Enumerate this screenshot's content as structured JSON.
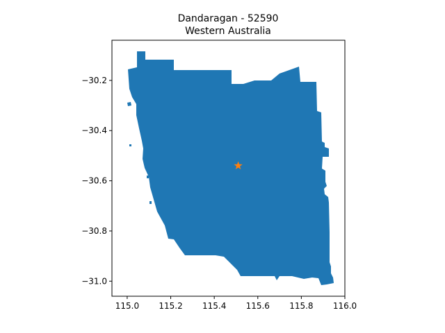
{
  "title": {
    "line1": "Dandaragan - 52590",
    "line2": "Western Australia"
  },
  "colors": {
    "region_fill": "#1f77b4",
    "marker": "#ff7f0e",
    "axes": "#000000"
  },
  "map": {
    "xlim": [
      114.93,
      116.0
    ],
    "ylim": [
      -31.06,
      -30.04
    ],
    "x_ticks": [
      115.0,
      115.2,
      115.4,
      115.6,
      115.8,
      116.0
    ],
    "x_tick_labels": [
      "115.0",
      "115.2",
      "115.4",
      "115.6",
      "115.8",
      "116.0"
    ],
    "y_ticks": [
      -30.2,
      -30.4,
      -30.6,
      -30.8,
      -31.0
    ],
    "y_tick_labels": [
      "−30.2",
      "−30.4",
      "−30.6",
      "−30.8",
      "−31.0"
    ],
    "marker": {
      "lon": 115.51,
      "lat": -30.54,
      "shape": "star"
    }
  }
}
